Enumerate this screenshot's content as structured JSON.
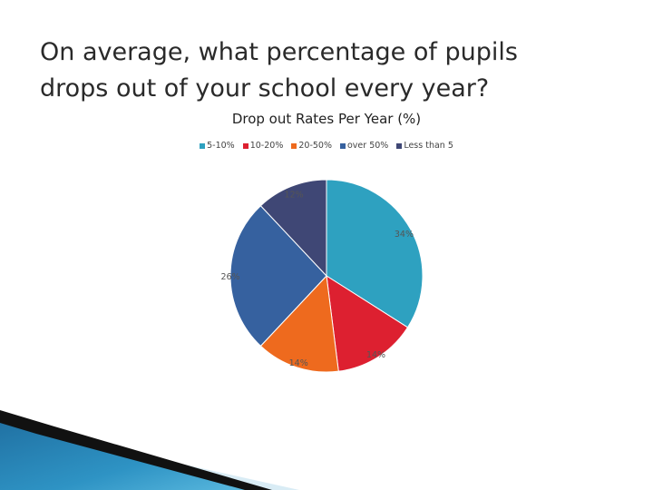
{
  "slide": {
    "title_line1": "On average, what percentage of pupils",
    "title_line2": "drops out of your school every year?"
  },
  "chart_data": {
    "type": "pie",
    "title": "Drop out Rates Per Year (%)",
    "legend_placement": "top",
    "categories": [
      "5-10%",
      "10-20%",
      "20-50%",
      "over 50%",
      "Less than 5"
    ],
    "values": [
      34,
      14,
      14,
      26,
      12
    ],
    "data_labels": [
      "34%",
      "14%",
      "14%",
      "26%",
      "12%"
    ],
    "colors": [
      "#2ea1c0",
      "#dd2030",
      "#ee6a1e",
      "#36619f",
      "#3f4775"
    ]
  }
}
